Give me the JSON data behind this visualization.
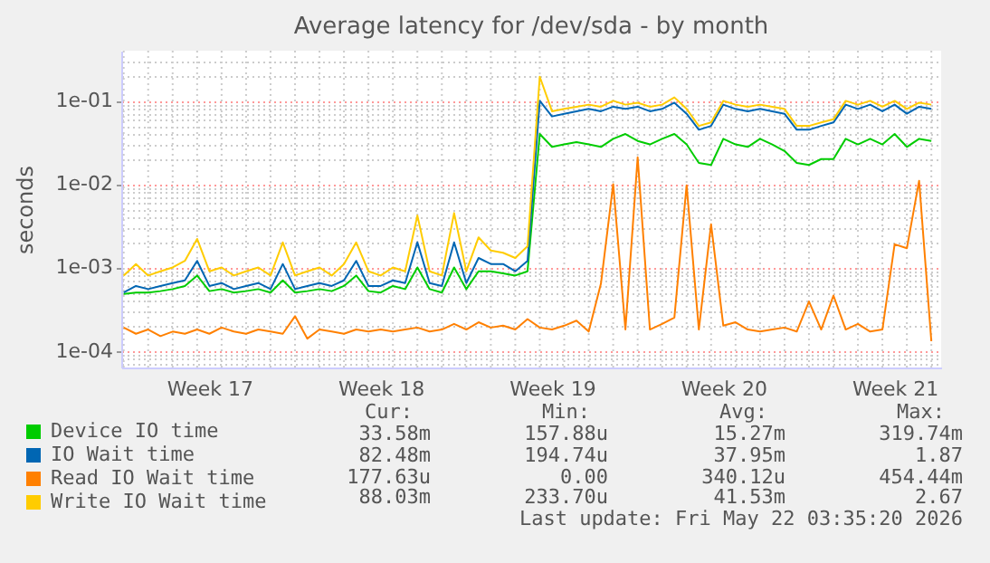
{
  "chart_data": {
    "type": "line",
    "title": "Average latency for /dev/sda - by month",
    "ylabel": "seconds",
    "categories": [
      null,
      null,
      null,
      null,
      null,
      null,
      null,
      "Week 17",
      null,
      null,
      null,
      null,
      null,
      null,
      null,
      null,
      null,
      null,
      null,
      null,
      null,
      "Week 18",
      null,
      null,
      null,
      null,
      null,
      null,
      null,
      null,
      null,
      null,
      null,
      null,
      null,
      "Week 19",
      null,
      null,
      null,
      null,
      null,
      null,
      null,
      null,
      null,
      null,
      null,
      null,
      null,
      "Week 20",
      null,
      null,
      null,
      null,
      null,
      null,
      null,
      null,
      null,
      null,
      null,
      null,
      null,
      "Week 21",
      null,
      null,
      null
    ],
    "series": [
      {
        "name": "Device IO time",
        "color": "#00cc00",
        "values": [
          0.00048,
          0.0005,
          0.0005,
          0.00052,
          0.00055,
          0.0006,
          0.0008,
          0.00052,
          0.00055,
          0.0005,
          0.00052,
          0.00055,
          0.0005,
          0.0007,
          0.0005,
          0.00052,
          0.00055,
          0.00052,
          0.0006,
          0.0008,
          0.00052,
          0.0005,
          0.0006,
          0.00055,
          0.001,
          0.00055,
          0.0005,
          0.001,
          0.00055,
          0.0009,
          0.0009,
          0.00085,
          0.0008,
          0.0009,
          0.04,
          0.028,
          0.03,
          0.032,
          0.03,
          0.028,
          0.035,
          0.04,
          0.033,
          0.03,
          0.035,
          0.04,
          0.03,
          0.018,
          0.017,
          0.035,
          0.03,
          0.028,
          0.035,
          0.03,
          0.025,
          0.018,
          0.017,
          0.02,
          0.02,
          0.035,
          0.03,
          0.035,
          0.03,
          0.04,
          0.028,
          0.035,
          0.033
        ]
      },
      {
        "name": "IO Wait time",
        "color": "#0066b3",
        "values": [
          0.0005,
          0.0006,
          0.00055,
          0.0006,
          0.00065,
          0.0007,
          0.0012,
          0.0006,
          0.00065,
          0.00055,
          0.0006,
          0.00065,
          0.00055,
          0.0011,
          0.00055,
          0.0006,
          0.00065,
          0.0006,
          0.0007,
          0.0012,
          0.0006,
          0.0006,
          0.0007,
          0.00065,
          0.002,
          0.00065,
          0.0006,
          0.002,
          0.00065,
          0.0013,
          0.0011,
          0.0011,
          0.0009,
          0.0012,
          0.1,
          0.065,
          0.07,
          0.075,
          0.08,
          0.075,
          0.085,
          0.08,
          0.085,
          0.075,
          0.08,
          0.095,
          0.07,
          0.045,
          0.05,
          0.09,
          0.08,
          0.075,
          0.08,
          0.075,
          0.07,
          0.045,
          0.045,
          0.05,
          0.055,
          0.09,
          0.08,
          0.09,
          0.075,
          0.09,
          0.07,
          0.085,
          0.08
        ]
      },
      {
        "name": "Read IO Wait time",
        "color": "#ff8000",
        "values": [
          0.00019,
          0.00016,
          0.00018,
          0.00015,
          0.00017,
          0.00016,
          0.00018,
          0.00016,
          0.00019,
          0.00017,
          0.00016,
          0.00018,
          0.00017,
          0.00016,
          0.00026,
          0.00014,
          0.00018,
          0.00017,
          0.00016,
          0.00018,
          0.00017,
          0.00018,
          0.00017,
          0.00018,
          0.00019,
          0.00017,
          0.00018,
          0.00021,
          0.00018,
          0.00022,
          0.00019,
          0.0002,
          0.00018,
          0.00024,
          0.00019,
          0.00018,
          0.0002,
          0.00023,
          0.00017,
          0.00064,
          0.01,
          0.00018,
          0.021,
          0.00018,
          0.00021,
          0.00025,
          0.0097,
          0.00018,
          0.0033,
          0.0002,
          0.00022,
          0.00018,
          0.00017,
          0.00018,
          0.00019,
          0.00017,
          0.00039,
          0.00018,
          0.00046,
          0.00018,
          0.00021,
          0.00017,
          0.00018,
          0.0019,
          0.0017,
          0.011,
          0.00013
        ]
      },
      {
        "name": "Write IO Wait time",
        "color": "#ffcc00",
        "values": [
          0.0008,
          0.0011,
          0.0008,
          0.0009,
          0.001,
          0.0012,
          0.0022,
          0.0009,
          0.001,
          0.0008,
          0.0009,
          0.001,
          0.0008,
          0.002,
          0.0008,
          0.0009,
          0.001,
          0.0008,
          0.0011,
          0.002,
          0.0009,
          0.0008,
          0.001,
          0.0009,
          0.0042,
          0.0009,
          0.0008,
          0.0045,
          0.0009,
          0.0023,
          0.0016,
          0.0015,
          0.0013,
          0.0018,
          0.195,
          0.075,
          0.08,
          0.085,
          0.09,
          0.085,
          0.1,
          0.09,
          0.095,
          0.085,
          0.09,
          0.11,
          0.08,
          0.05,
          0.055,
          0.1,
          0.09,
          0.085,
          0.09,
          0.085,
          0.08,
          0.05,
          0.05,
          0.055,
          0.06,
          0.1,
          0.09,
          0.1,
          0.085,
          0.1,
          0.08,
          0.095,
          0.09
        ]
      }
    ],
    "ylim": [
      6.3e-05,
      0.4
    ],
    "yticks": [
      {
        "value": 7e-05,
        "label": null
      },
      {
        "value": 8e-05,
        "label": null
      },
      {
        "value": 9e-05,
        "label": null
      },
      {
        "value": 0.0001,
        "label": "1e-04"
      },
      {
        "value": 0.0002,
        "label": null
      },
      {
        "value": 0.0003,
        "label": null
      },
      {
        "value": 0.0004,
        "label": null
      },
      {
        "value": 0.0005,
        "label": null
      },
      {
        "value": 0.0006,
        "label": null
      },
      {
        "value": 0.0007,
        "label": null
      },
      {
        "value": 0.0008,
        "label": null
      },
      {
        "value": 0.0009,
        "label": null
      },
      {
        "value": 0.001,
        "label": "1e-03"
      },
      {
        "value": 0.002,
        "label": null
      },
      {
        "value": 0.003,
        "label": null
      },
      {
        "value": 0.004,
        "label": null
      },
      {
        "value": 0.005,
        "label": null
      },
      {
        "value": 0.006,
        "label": null
      },
      {
        "value": 0.007,
        "label": null
      },
      {
        "value": 0.008,
        "label": null
      },
      {
        "value": 0.009,
        "label": null
      },
      {
        "value": 0.01,
        "label": "1e-02"
      },
      {
        "value": 0.02,
        "label": null
      },
      {
        "value": 0.03,
        "label": null
      },
      {
        "value": 0.04,
        "label": null
      },
      {
        "value": 0.05,
        "label": null
      },
      {
        "value": 0.06,
        "label": null
      },
      {
        "value": 0.07,
        "label": null
      },
      {
        "value": 0.08,
        "label": null
      },
      {
        "value": 0.09,
        "label": null
      },
      {
        "value": 0.1,
        "label": "1e-01"
      },
      {
        "value": 0.2,
        "label": null
      },
      {
        "value": 0.3,
        "label": null
      }
    ],
    "log": "y",
    "grid": true,
    "legend": "bottom",
    "annotations": [
      "Cur:",
      "Min:",
      "Avg:",
      "Max:",
      "33.58m",
      "157.88u",
      "15.27m",
      "319.74m",
      "82.48m",
      "194.74u",
      "37.95m",
      "1.87",
      "177.63u",
      "0.00",
      "340.12u",
      "454.44m",
      "88.03m",
      "233.70u",
      "41.53m",
      "2.67",
      "Last update: Fri May 22 03:35:20 2026"
    ]
  }
}
